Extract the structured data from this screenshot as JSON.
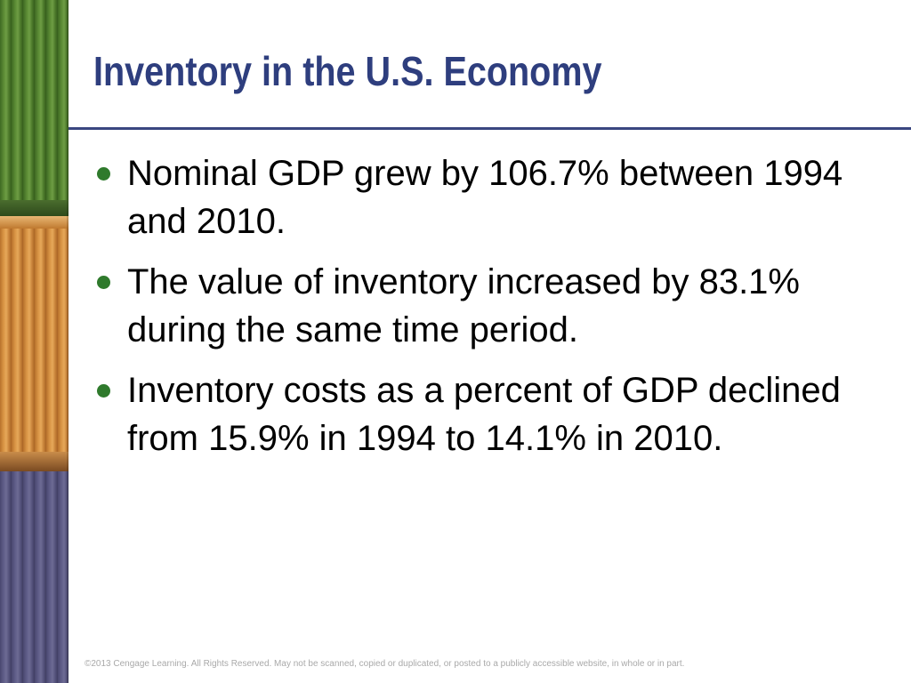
{
  "slide": {
    "title": "Inventory in the U.S. Economy",
    "bullets": [
      {
        "text": "Nominal GDP grew by 106.7% between 1994 and 2010."
      },
      {
        "text": "The value of inventory increased by 83.1% during the same time period."
      },
      {
        "text": "Inventory costs as a percent of GDP declined from 15.9% in 1994 to 14.1% in 2010."
      }
    ],
    "footer": "©2013 Cengage Learning. All Rights Reserved. May not be scanned, copied or duplicated, or posted to a publicly accessible website, in whole or in part."
  },
  "colors": {
    "title": "#2e3e7e",
    "rule": "#3a4680",
    "bullet": "#2f7a2c",
    "footer": "#a9a9a9"
  }
}
